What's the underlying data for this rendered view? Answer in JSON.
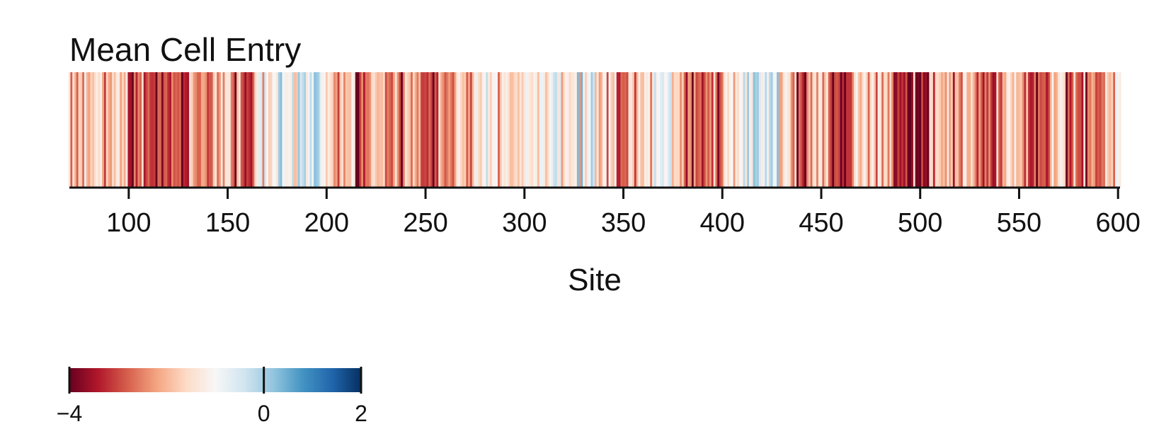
{
  "chart_data": {
    "type": "heatmap",
    "title": "Mean Cell Entry",
    "xlabel": "Site",
    "ylabel": "",
    "xlim": [
      70,
      601
    ],
    "x_ticks": [
      100,
      150,
      200,
      250,
      300,
      350,
      400,
      450,
      500,
      550,
      600
    ],
    "x_tick_labels": [
      "100",
      "150",
      "200",
      "250",
      "300",
      "350",
      "400",
      "450",
      "500",
      "550",
      "600"
    ],
    "colormap": "RdBu",
    "color_range": [
      -4,
      2
    ],
    "colorbar": {
      "ticks": [
        -4,
        0,
        2
      ],
      "tick_labels": [
        "−4",
        "0",
        "2"
      ],
      "colors": [
        "#67001f",
        "#b2182b",
        "#d6604d",
        "#f4a582",
        "#fddbc7",
        "#f7f7f7",
        "#d1e5f0",
        "#92c5de",
        "#4393c3",
        "#2166ac",
        "#053061"
      ]
    },
    "segments": [
      {
        "start": 70,
        "end": 78,
        "value": -0.6
      },
      {
        "start": 79,
        "end": 90,
        "value": -1.0
      },
      {
        "start": 91,
        "end": 100,
        "value": -1.4
      },
      {
        "start": 101,
        "end": 108,
        "value": -2.6
      },
      {
        "start": 109,
        "end": 119,
        "value": -3.0
      },
      {
        "start": 120,
        "end": 131,
        "value": -2.7
      },
      {
        "start": 132,
        "end": 140,
        "value": -1.6
      },
      {
        "start": 141,
        "end": 150,
        "value": -1.8
      },
      {
        "start": 151,
        "end": 157,
        "value": -2.0
      },
      {
        "start": 158,
        "end": 163,
        "value": -2.8
      },
      {
        "start": 164,
        "end": 172,
        "value": -0.4
      },
      {
        "start": 173,
        "end": 185,
        "value": 0.15
      },
      {
        "start": 186,
        "end": 196,
        "value": 0.3
      },
      {
        "start": 197,
        "end": 199,
        "value": -0.3
      },
      {
        "start": 200,
        "end": 209,
        "value": -1.3
      },
      {
        "start": 210,
        "end": 214,
        "value": -0.5
      },
      {
        "start": 215,
        "end": 222,
        "value": -2.6
      },
      {
        "start": 223,
        "end": 229,
        "value": -1.2
      },
      {
        "start": 230,
        "end": 240,
        "value": -2.2
      },
      {
        "start": 241,
        "end": 247,
        "value": -1.6
      },
      {
        "start": 248,
        "end": 258,
        "value": -2.3
      },
      {
        "start": 259,
        "end": 266,
        "value": -2.0
      },
      {
        "start": 267,
        "end": 274,
        "value": -0.9
      },
      {
        "start": 275,
        "end": 286,
        "value": -0.3
      },
      {
        "start": 287,
        "end": 298,
        "value": -0.8
      },
      {
        "start": 299,
        "end": 311,
        "value": -0.6
      },
      {
        "start": 312,
        "end": 325,
        "value": -0.2
      },
      {
        "start": 326,
        "end": 338,
        "value": 0.2
      },
      {
        "start": 339,
        "end": 346,
        "value": -0.7
      },
      {
        "start": 347,
        "end": 352,
        "value": -2.6
      },
      {
        "start": 353,
        "end": 362,
        "value": -0.9
      },
      {
        "start": 363,
        "end": 374,
        "value": -0.3
      },
      {
        "start": 375,
        "end": 380,
        "value": -1.2
      },
      {
        "start": 381,
        "end": 392,
        "value": -2.1
      },
      {
        "start": 393,
        "end": 400,
        "value": -2.5
      },
      {
        "start": 401,
        "end": 409,
        "value": -0.5
      },
      {
        "start": 410,
        "end": 418,
        "value": 0.1
      },
      {
        "start": 419,
        "end": 428,
        "value": 0.3
      },
      {
        "start": 429,
        "end": 434,
        "value": -0.4
      },
      {
        "start": 435,
        "end": 443,
        "value": -2.6
      },
      {
        "start": 444,
        "end": 453,
        "value": -0.6
      },
      {
        "start": 454,
        "end": 467,
        "value": -2.3
      },
      {
        "start": 468,
        "end": 480,
        "value": -0.8
      },
      {
        "start": 481,
        "end": 486,
        "value": -1.5
      },
      {
        "start": 487,
        "end": 497,
        "value": -3.0
      },
      {
        "start": 498,
        "end": 509,
        "value": -3.2
      },
      {
        "start": 510,
        "end": 520,
        "value": -1.6
      },
      {
        "start": 521,
        "end": 530,
        "value": -1.3
      },
      {
        "start": 531,
        "end": 540,
        "value": -2.7
      },
      {
        "start": 541,
        "end": 548,
        "value": -0.9
      },
      {
        "start": 549,
        "end": 554,
        "value": -1.4
      },
      {
        "start": 555,
        "end": 564,
        "value": -2.8
      },
      {
        "start": 565,
        "end": 573,
        "value": -0.9
      },
      {
        "start": 574,
        "end": 583,
        "value": -2.6
      },
      {
        "start": 584,
        "end": 593,
        "value": -2.2
      },
      {
        "start": 594,
        "end": 601,
        "value": -0.6
      }
    ]
  }
}
